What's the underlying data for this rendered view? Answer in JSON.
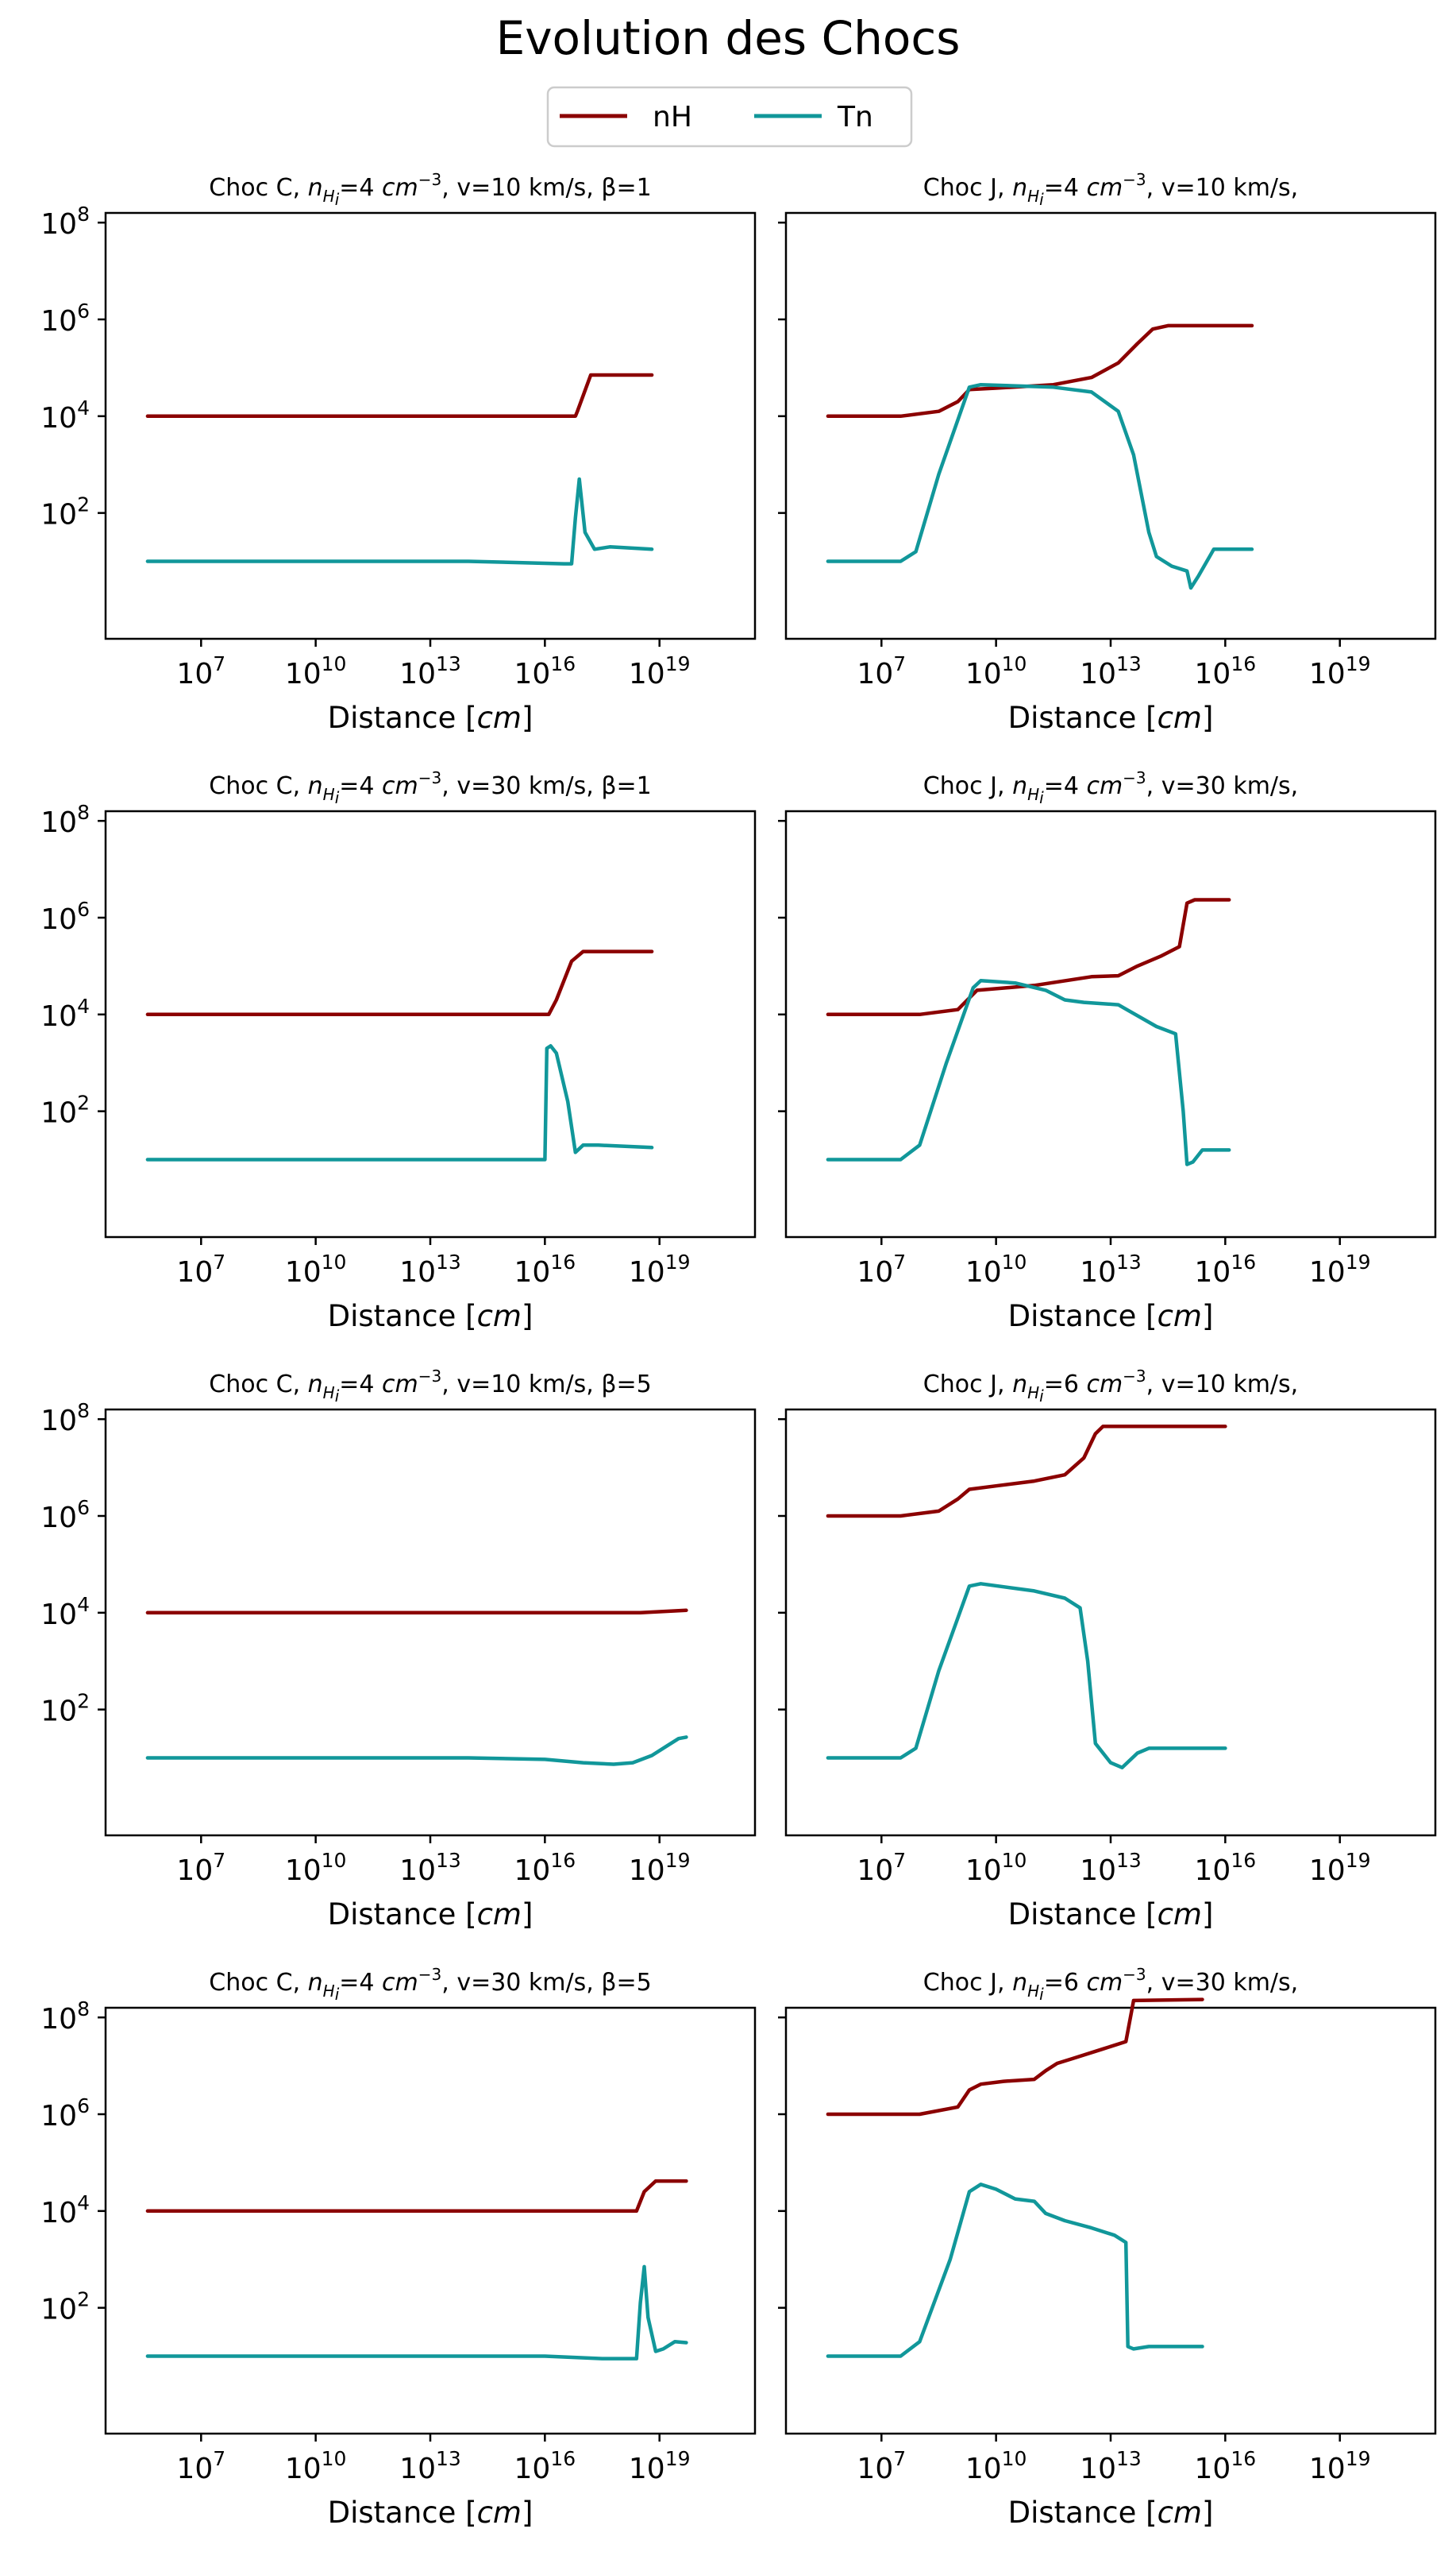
{
  "figure": {
    "title": "Evolution des Chocs",
    "legend": [
      {
        "name": "nH",
        "color": "#8b0000"
      },
      {
        "name": "Tn",
        "color": "#11979a"
      }
    ]
  },
  "chart_data": [
    {
      "type": "line",
      "title": "Choc C, n_Hi=4 cm^-3, v=10 km/s, β=1",
      "title_parts": {
        "prefix": "Choc C, ",
        "n_symbol": "n",
        "n_sub": "H",
        "n_sub2": "i",
        "n_value": "=4 ",
        "n_unit": "cm",
        "n_exp": "−3",
        "v_part": ", v=10 km/s",
        "beta_part": ", β=1"
      },
      "xlabel": "Distance [cm]",
      "xscale": "log",
      "yscale": "log",
      "xlim_exp": [
        4.5,
        21.5
      ],
      "ylim_exp": [
        -0.6,
        8.2
      ],
      "xticks": [
        "10^7",
        "10^10",
        "10^13",
        "10^16",
        "10^19"
      ],
      "yticks": [
        "10^2",
        "10^4",
        "10^6",
        "10^8"
      ],
      "series": [
        {
          "name": "nH",
          "log_x": [
            5.6,
            16.8,
            16.85,
            17.2,
            18.8
          ],
          "log_y": [
            4.0,
            4.0,
            4.1,
            4.85,
            4.85
          ]
        },
        {
          "name": "Tn",
          "log_x": [
            5.6,
            14,
            16.5,
            16.7,
            16.8,
            16.9,
            17.05,
            17.3,
            17.7,
            18.8
          ],
          "log_y": [
            1.0,
            1.0,
            0.95,
            0.95,
            1.9,
            2.7,
            1.6,
            1.25,
            1.3,
            1.25
          ]
        }
      ]
    },
    {
      "type": "line",
      "title": "Choc J, n_Hi=4 cm^-3, v=10 km/s,",
      "title_parts": {
        "prefix": "Choc J, ",
        "n_symbol": "n",
        "n_sub": "H",
        "n_sub2": "i",
        "n_value": "=4 ",
        "n_unit": "cm",
        "n_exp": "−3",
        "v_part": ", v=10 km/s,",
        "beta_part": ""
      },
      "xlabel": "Distance [cm]",
      "xscale": "log",
      "yscale": "log",
      "xlim_exp": [
        4.5,
        21.5
      ],
      "ylim_exp": [
        -0.6,
        8.2
      ],
      "xticks": [
        "10^7",
        "10^10",
        "10^13",
        "10^16",
        "10^19"
      ],
      "yticks": [
        "10^2",
        "10^4",
        "10^6",
        "10^8"
      ],
      "series": [
        {
          "name": "nH",
          "log_x": [
            5.6,
            7.5,
            8.5,
            9.0,
            9.3,
            10,
            11.5,
            12.5,
            13.2,
            13.7,
            14.1,
            14.5,
            16.7
          ],
          "log_y": [
            4.0,
            4.0,
            4.1,
            4.3,
            4.55,
            4.58,
            4.65,
            4.8,
            5.1,
            5.5,
            5.8,
            5.87,
            5.87
          ]
        },
        {
          "name": "Tn",
          "log_x": [
            5.6,
            7.5,
            7.9,
            8.5,
            9.3,
            9.6,
            11.5,
            12.5,
            13.2,
            13.6,
            14.0,
            14.2,
            14.6,
            15.0,
            15.1,
            15.3,
            15.7,
            16.7
          ],
          "log_y": [
            1.0,
            1.0,
            1.2,
            2.8,
            4.6,
            4.65,
            4.6,
            4.5,
            4.1,
            3.2,
            1.6,
            1.1,
            0.9,
            0.8,
            0.45,
            0.7,
            1.25,
            1.25
          ]
        }
      ]
    },
    {
      "type": "line",
      "title": "Choc C, n_Hi=4 cm^-3, v=30 km/s, β=1",
      "title_parts": {
        "prefix": "Choc C, ",
        "n_symbol": "n",
        "n_sub": "H",
        "n_sub2": "i",
        "n_value": "=4 ",
        "n_unit": "cm",
        "n_exp": "−3",
        "v_part": ", v=30 km/s",
        "beta_part": ", β=1"
      },
      "xlabel": "Distance [cm]",
      "xscale": "log",
      "yscale": "log",
      "xlim_exp": [
        4.5,
        21.5
      ],
      "ylim_exp": [
        -0.6,
        8.2
      ],
      "xticks": [
        "10^7",
        "10^10",
        "10^13",
        "10^16",
        "10^19"
      ],
      "yticks": [
        "10^2",
        "10^4",
        "10^6",
        "10^8"
      ],
      "series": [
        {
          "name": "nH",
          "log_x": [
            5.6,
            16.1,
            16.3,
            16.7,
            17.0,
            17.5,
            18.8
          ],
          "log_y": [
            4.0,
            4.0,
            4.3,
            5.1,
            5.3,
            5.3,
            5.3
          ]
        },
        {
          "name": "Tn",
          "log_x": [
            5.6,
            16.0,
            16.05,
            16.15,
            16.3,
            16.6,
            16.8,
            17.0,
            17.4,
            18.8
          ],
          "log_y": [
            1.0,
            1.0,
            3.3,
            3.35,
            3.2,
            2.2,
            1.15,
            1.3,
            1.3,
            1.25
          ]
        }
      ]
    },
    {
      "type": "line",
      "title": "Choc J, n_Hi=4 cm^-3, v=30 km/s,",
      "title_parts": {
        "prefix": "Choc J, ",
        "n_symbol": "n",
        "n_sub": "H",
        "n_sub2": "i",
        "n_value": "=4 ",
        "n_unit": "cm",
        "n_exp": "−3",
        "v_part": ", v=30 km/s,",
        "beta_part": ""
      },
      "xlabel": "Distance [cm]",
      "xscale": "log",
      "yscale": "log",
      "xlim_exp": [
        4.5,
        21.5
      ],
      "ylim_exp": [
        -0.6,
        8.2
      ],
      "xticks": [
        "10^7",
        "10^10",
        "10^13",
        "10^16",
        "10^19"
      ],
      "yticks": [
        "10^2",
        "10^4",
        "10^6",
        "10^8"
      ],
      "series": [
        {
          "name": "nH",
          "log_x": [
            5.6,
            8.0,
            9.0,
            9.5,
            11,
            12.5,
            13.2,
            13.7,
            14.3,
            14.8,
            15.0,
            15.2,
            16.1
          ],
          "log_y": [
            4.0,
            4.0,
            4.1,
            4.5,
            4.6,
            4.78,
            4.8,
            5.0,
            5.2,
            5.4,
            6.3,
            6.37,
            6.37
          ]
        },
        {
          "name": "Tn",
          "log_x": [
            5.6,
            7.5,
            8.0,
            8.7,
            9.4,
            9.6,
            10.5,
            11.3,
            11.8,
            12.3,
            13.2,
            14.2,
            14.7,
            14.9,
            15.0,
            15.15,
            15.4,
            16.1
          ],
          "log_y": [
            1.0,
            1.0,
            1.3,
            3.0,
            4.55,
            4.7,
            4.65,
            4.5,
            4.3,
            4.25,
            4.2,
            3.75,
            3.6,
            2.0,
            0.9,
            0.95,
            1.2,
            1.2
          ]
        }
      ]
    },
    {
      "type": "line",
      "title": "Choc C, n_Hi=4 cm^-3, v=10 km/s, β=5",
      "title_parts": {
        "prefix": "Choc C, ",
        "n_symbol": "n",
        "n_sub": "H",
        "n_sub2": "i",
        "n_value": "=4 ",
        "n_unit": "cm",
        "n_exp": "−3",
        "v_part": ", v=10 km/s",
        "beta_part": ", β=5"
      },
      "xlabel": "Distance [cm]",
      "xscale": "log",
      "yscale": "log",
      "xlim_exp": [
        4.5,
        21.5
      ],
      "ylim_exp": [
        -0.6,
        8.2
      ],
      "xticks": [
        "10^7",
        "10^10",
        "10^13",
        "10^16",
        "10^19"
      ],
      "yticks": [
        "10^2",
        "10^4",
        "10^6",
        "10^8"
      ],
      "series": [
        {
          "name": "nH",
          "log_x": [
            5.6,
            18.5,
            19.7
          ],
          "log_y": [
            4.0,
            4.0,
            4.05
          ]
        },
        {
          "name": "Tn",
          "log_x": [
            5.6,
            14,
            16.0,
            17.0,
            17.8,
            18.3,
            18.8,
            19.2,
            19.5,
            19.7
          ],
          "log_y": [
            1.0,
            1.0,
            0.97,
            0.9,
            0.87,
            0.9,
            1.05,
            1.25,
            1.4,
            1.43
          ]
        }
      ]
    },
    {
      "type": "line",
      "title": "Choc J, n_Hi=6 cm^-3, v=10 km/s,",
      "title_parts": {
        "prefix": "Choc J, ",
        "n_symbol": "n",
        "n_sub": "H",
        "n_sub2": "i",
        "n_value": "=6 ",
        "n_unit": "cm",
        "n_exp": "−3",
        "v_part": ", v=10 km/s,",
        "beta_part": ""
      },
      "xlabel": "Distance [cm]",
      "xscale": "log",
      "yscale": "log",
      "xlim_exp": [
        4.5,
        21.5
      ],
      "ylim_exp": [
        -0.6,
        8.2
      ],
      "xticks": [
        "10^7",
        "10^10",
        "10^13",
        "10^16",
        "10^19"
      ],
      "yticks": [
        "10^2",
        "10^4",
        "10^6",
        "10^8"
      ],
      "series": [
        {
          "name": "nH",
          "log_x": [
            5.6,
            7.5,
            8.5,
            9.0,
            9.3,
            10,
            11,
            11.8,
            12.3,
            12.6,
            12.8,
            13.2,
            16.0
          ],
          "log_y": [
            6.0,
            6.0,
            6.1,
            6.35,
            6.55,
            6.62,
            6.72,
            6.85,
            7.2,
            7.7,
            7.85,
            7.85,
            7.85
          ]
        },
        {
          "name": "Tn",
          "log_x": [
            5.6,
            7.5,
            7.9,
            8.5,
            9.3,
            9.6,
            11,
            11.8,
            12.2,
            12.4,
            12.6,
            13.0,
            13.3,
            13.7,
            14.0,
            16.0
          ],
          "log_y": [
            1.0,
            1.0,
            1.2,
            2.8,
            4.55,
            4.6,
            4.45,
            4.3,
            4.1,
            3.0,
            1.3,
            0.9,
            0.8,
            1.1,
            1.2,
            1.2
          ]
        }
      ]
    },
    {
      "type": "line",
      "title": "Choc C, n_Hi=4 cm^-3, v=30 km/s, β=5",
      "title_parts": {
        "prefix": "Choc C, ",
        "n_symbol": "n",
        "n_sub": "H",
        "n_sub2": "i",
        "n_value": "=4 ",
        "n_unit": "cm",
        "n_exp": "−3",
        "v_part": ", v=30 km/s",
        "beta_part": ", β=5"
      },
      "xlabel": "Distance [cm]",
      "xscale": "log",
      "yscale": "log",
      "xlim_exp": [
        4.5,
        21.5
      ],
      "ylim_exp": [
        -0.6,
        8.2
      ],
      "xticks": [
        "10^7",
        "10^10",
        "10^13",
        "10^16",
        "10^19"
      ],
      "yticks": [
        "10^2",
        "10^4",
        "10^6",
        "10^8"
      ],
      "series": [
        {
          "name": "nH",
          "log_x": [
            5.6,
            18.4,
            18.6,
            18.9,
            19.7
          ],
          "log_y": [
            4.0,
            4.0,
            4.4,
            4.62,
            4.62
          ]
        },
        {
          "name": "Tn",
          "log_x": [
            5.6,
            16,
            17.5,
            18.4,
            18.5,
            18.6,
            18.7,
            18.9,
            19.1,
            19.4,
            19.7
          ],
          "log_y": [
            1.0,
            1.0,
            0.95,
            0.95,
            2.1,
            2.85,
            1.8,
            1.1,
            1.15,
            1.3,
            1.28
          ]
        }
      ]
    },
    {
      "type": "line",
      "title": "Choc J, n_Hi=6 cm^-3, v=30 km/s,",
      "title_parts": {
        "prefix": "Choc J, ",
        "n_symbol": "n",
        "n_sub": "H",
        "n_sub2": "i",
        "n_value": "=6 ",
        "n_unit": "cm",
        "n_exp": "−3",
        "v_part": ", v=30 km/s,",
        "beta_part": ""
      },
      "xlabel": "Distance [cm]",
      "xscale": "log",
      "yscale": "log",
      "xlim_exp": [
        4.5,
        21.5
      ],
      "ylim_exp": [
        -0.6,
        8.2
      ],
      "xticks": [
        "10^7",
        "10^10",
        "10^13",
        "10^16",
        "10^19"
      ],
      "yticks": [
        "10^2",
        "10^4",
        "10^6",
        "10^8"
      ],
      "series": [
        {
          "name": "nH",
          "log_x": [
            5.6,
            8.0,
            9.0,
            9.3,
            9.6,
            10.2,
            11.0,
            11.3,
            11.6,
            12.0,
            12.8,
            13.4,
            13.6,
            15.4
          ],
          "log_y": [
            6.0,
            6.0,
            6.15,
            6.5,
            6.62,
            6.68,
            6.72,
            6.9,
            7.05,
            7.15,
            7.35,
            7.5,
            8.35,
            8.37
          ]
        },
        {
          "name": "Tn",
          "log_x": [
            5.6,
            7.5,
            8.0,
            8.8,
            9.3,
            9.6,
            10.0,
            10.5,
            11.0,
            11.3,
            11.8,
            12.5,
            13.1,
            13.4,
            13.45,
            13.6,
            14.0,
            15.4
          ],
          "log_y": [
            1.0,
            1.0,
            1.3,
            3.0,
            4.4,
            4.55,
            4.45,
            4.25,
            4.2,
            3.95,
            3.8,
            3.65,
            3.5,
            3.35,
            1.2,
            1.15,
            1.2,
            1.2
          ]
        }
      ]
    }
  ]
}
